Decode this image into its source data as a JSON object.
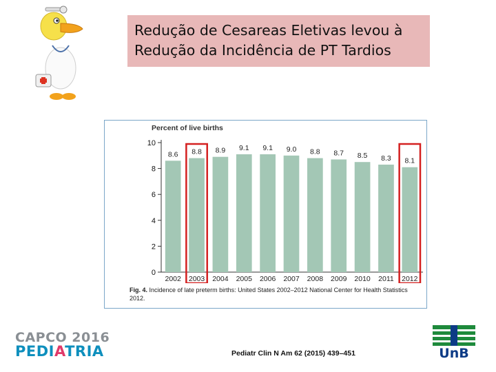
{
  "slide": {
    "title_line1": "Redução de Cesareas Eletivas levou à",
    "title_line2": "Redução da Incidência de PT Tardios",
    "reference": "Pediatr Clin N Am 62 (2015) 439–451",
    "mascot_icon": "doctor-duck-icon"
  },
  "figure": {
    "caption_bold": "Fig. 4.",
    "caption_text": " Incidence of late preterm births: United States 2002–2012 National Center for Health Statistics 2012."
  },
  "chart_data": {
    "type": "bar",
    "title": "",
    "ylabel": "Percent of live births",
    "xlabel": "",
    "categories": [
      "2002",
      "2003",
      "2004",
      "2005",
      "2006",
      "2007",
      "2008",
      "2009",
      "2010",
      "2011",
      "2012"
    ],
    "values": [
      8.6,
      8.8,
      8.9,
      9.1,
      9.1,
      9.0,
      8.8,
      8.7,
      8.5,
      8.3,
      8.1
    ],
    "data_labels": [
      "8.6",
      "8.8",
      "8.9",
      "9.1",
      "9.1",
      "9.0",
      "8.8",
      "8.7",
      "8.5",
      "8.3",
      "8.1"
    ],
    "ylim": [
      0,
      10
    ],
    "yticks": [
      "0",
      "2",
      "4",
      "6",
      "8",
      "10"
    ],
    "bar_color": "#a3c7b5",
    "highlight_color": "#d42020",
    "highlighted": [
      "2003",
      "2012"
    ],
    "grid": false,
    "legend": "none"
  },
  "logos": {
    "capco_line1": "CAPCO 2016",
    "capco_line2_a": "PEDI",
    "capco_line2_b": "A",
    "capco_line2_c": "TRIA",
    "unb_text": "Un",
    "unb_text_b": "B"
  }
}
